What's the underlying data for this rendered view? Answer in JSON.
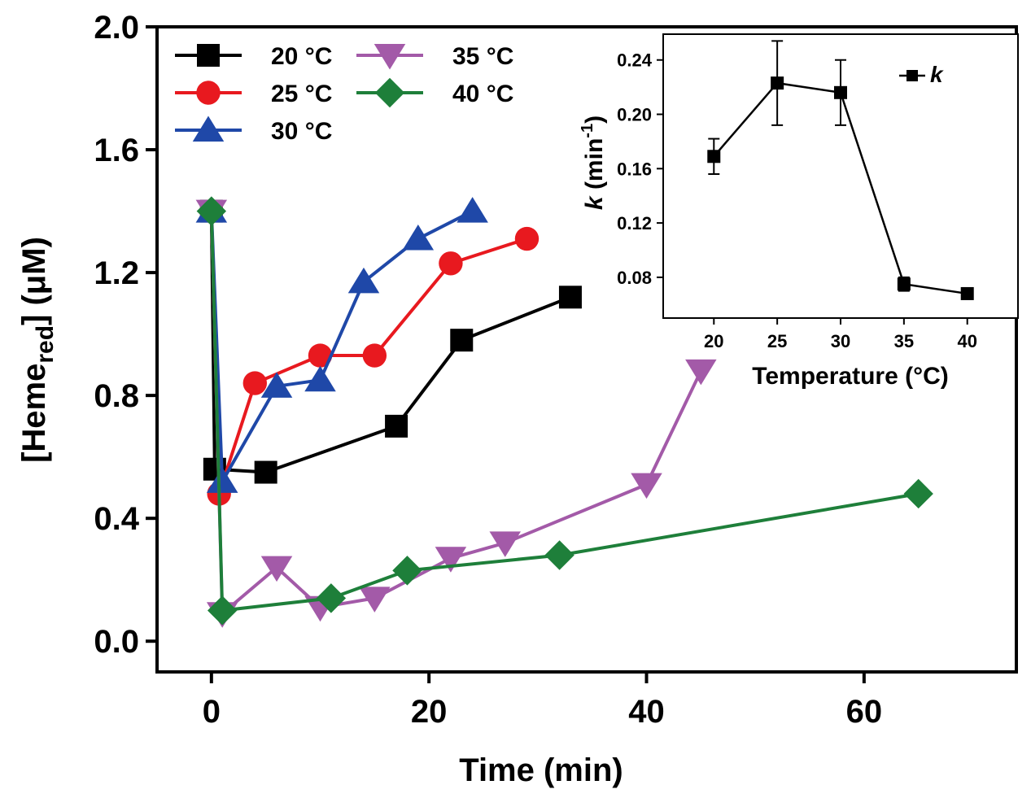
{
  "chart_data": [
    {
      "type": "line",
      "title": "",
      "xlabel": "Time (min)",
      "ylabel_parts": {
        "open": "[Heme",
        "sub": "red",
        "close": "] (μM)"
      },
      "xlim": [
        -5,
        74
      ],
      "ylim": [
        -0.1,
        2.0
      ],
      "xticks": [
        "0",
        "20",
        "40",
        "60"
      ],
      "xtick_values": [
        0,
        20,
        40,
        60
      ],
      "yticks": [
        "0.0",
        "0.4",
        "0.8",
        "1.2",
        "1.6",
        "2.0"
      ],
      "ytick_values": [
        0.0,
        0.4,
        0.8,
        1.2,
        1.6,
        2.0
      ],
      "legend_position": "top-left",
      "series": [
        {
          "name": "20 °C",
          "color": "#000000",
          "marker": "square",
          "x": [
            0,
            0.3,
            5,
            17,
            23,
            33
          ],
          "y": [
            1.4,
            0.56,
            0.55,
            0.7,
            0.98,
            1.12
          ]
        },
        {
          "name": "25 °C",
          "color": "#e8191f",
          "marker": "circle",
          "x": [
            0,
            0.7,
            4,
            10,
            15,
            22,
            29
          ],
          "y": [
            1.4,
            0.48,
            0.84,
            0.93,
            0.93,
            1.23,
            1.31
          ]
        },
        {
          "name": "30 °C",
          "color": "#1f48a8",
          "marker": "triangle-up",
          "x": [
            0,
            1,
            6,
            10,
            14,
            19,
            24
          ],
          "y": [
            1.4,
            0.52,
            0.83,
            0.85,
            1.17,
            1.31,
            1.4
          ]
        },
        {
          "name": "35 °C",
          "color": "#a35aa8",
          "marker": "triangle-down",
          "x": [
            0,
            1,
            6,
            10,
            15,
            22,
            27,
            40,
            45
          ],
          "y": [
            1.4,
            0.09,
            0.24,
            0.11,
            0.14,
            0.27,
            0.32,
            0.51,
            0.88
          ]
        },
        {
          "name": "40 °C",
          "color": "#1e7f3a",
          "marker": "diamond",
          "x": [
            0,
            1,
            11,
            18,
            32,
            65
          ],
          "y": [
            1.4,
            0.1,
            0.14,
            0.23,
            0.28,
            0.48
          ]
        }
      ]
    },
    {
      "type": "line",
      "title": "",
      "xlabel": "Temperature (°C)",
      "ylabel_parts": {
        "k": "k",
        "unit": " (min",
        "sup": "-1",
        "close": ")"
      },
      "xlim": [
        16,
        44
      ],
      "ylim": [
        0.05,
        0.259
      ],
      "xticks": [
        "20",
        "25",
        "30",
        "35",
        "40"
      ],
      "xtick_values": [
        20,
        25,
        30,
        35,
        40
      ],
      "yticks": [
        "0.08",
        "0.12",
        "0.16",
        "0.20",
        "0.24"
      ],
      "ytick_values": [
        0.08,
        0.12,
        0.16,
        0.2,
        0.24
      ],
      "legend_position": "top-right",
      "series": [
        {
          "name": "k",
          "color": "#000000",
          "marker": "square",
          "x": [
            20,
            25,
            30,
            35,
            40
          ],
          "y": [
            0.169,
            0.223,
            0.216,
            0.075,
            0.068
          ],
          "error": [
            0.013,
            0.031,
            0.024,
            0.005,
            0.003
          ]
        }
      ]
    }
  ]
}
